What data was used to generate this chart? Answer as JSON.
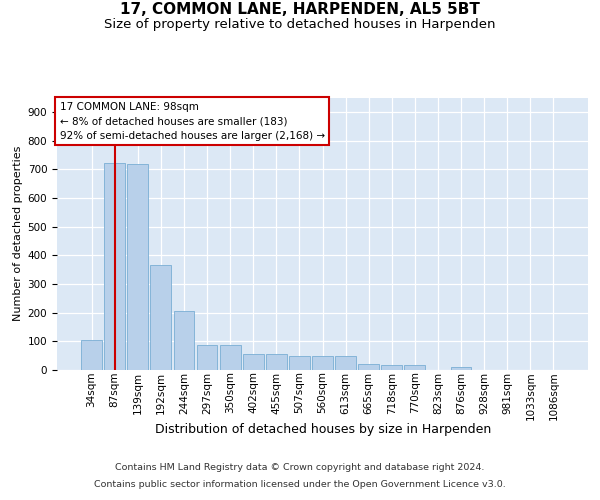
{
  "title1": "17, COMMON LANE, HARPENDEN, AL5 5BT",
  "title2": "Size of property relative to detached houses in Harpenden",
  "xlabel": "Distribution of detached houses by size in Harpenden",
  "ylabel": "Number of detached properties",
  "categories": [
    "34sqm",
    "87sqm",
    "139sqm",
    "192sqm",
    "244sqm",
    "297sqm",
    "350sqm",
    "402sqm",
    "455sqm",
    "507sqm",
    "560sqm",
    "613sqm",
    "665sqm",
    "718sqm",
    "770sqm",
    "823sqm",
    "876sqm",
    "928sqm",
    "981sqm",
    "1033sqm",
    "1086sqm"
  ],
  "values": [
    103,
    722,
    718,
    365,
    205,
    87,
    87,
    57,
    57,
    50,
    50,
    50,
    20,
    18,
    18,
    0,
    12,
    0,
    0,
    0,
    0
  ],
  "bar_color": "#b8d0ea",
  "bar_edge_color": "#7aaed4",
  "vline_index": 1,
  "vline_color": "#cc0000",
  "annotation_text": "17 COMMON LANE: 98sqm\n← 8% of detached houses are smaller (183)\n92% of semi-detached houses are larger (2,168) →",
  "annotation_box_facecolor": "#ffffff",
  "annotation_box_edgecolor": "#cc0000",
  "footer1": "Contains HM Land Registry data © Crown copyright and database right 2024.",
  "footer2": "Contains public sector information licensed under the Open Government Licence v3.0.",
  "plot_bg_color": "#dce8f5",
  "ylim_max": 950,
  "title1_fontsize": 11,
  "title2_fontsize": 9.5,
  "xlabel_fontsize": 9,
  "ylabel_fontsize": 8,
  "footer_fontsize": 6.8,
  "tick_fontsize": 7.5,
  "annotation_fontsize": 7.5
}
